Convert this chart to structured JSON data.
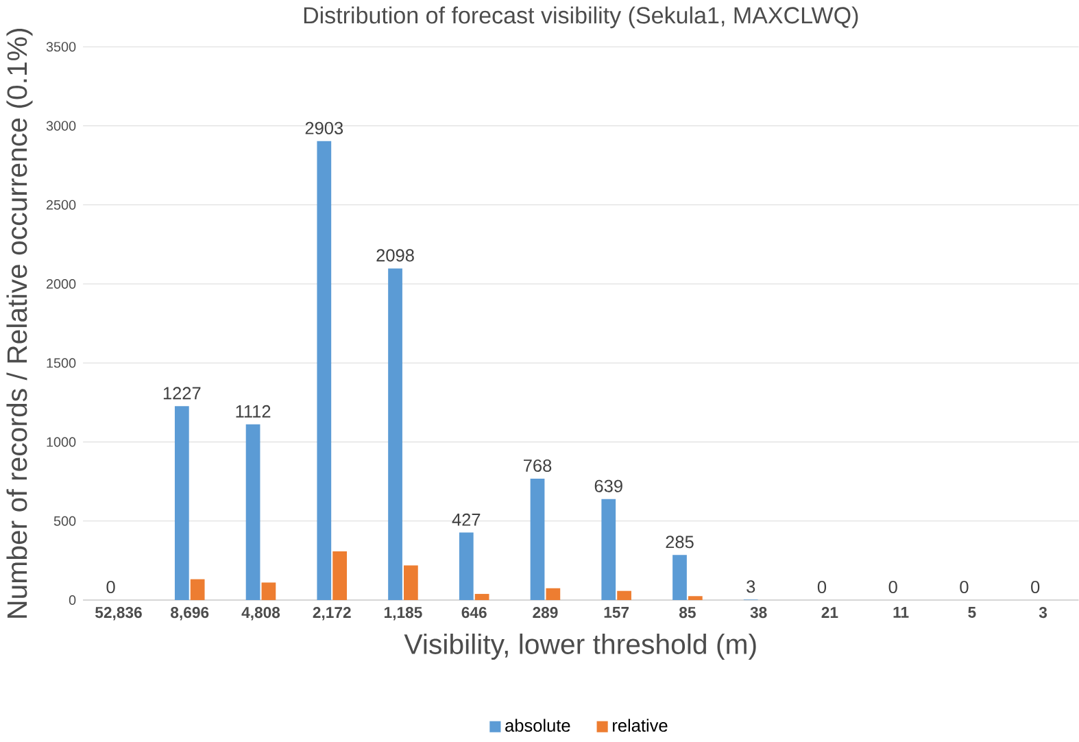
{
  "chart_data": {
    "type": "bar",
    "title": "Distribution of forecast visibility (Sekula1, MAXCLWQ)",
    "xlabel": "Visibility, lower threshold (m)",
    "ylabel": "Number of records / Relative occurrence (0.1%)",
    "categories": [
      "52,836",
      "8,696",
      "4,808",
      "2,172",
      "1,185",
      "646",
      "289",
      "157",
      "85",
      "38",
      "21",
      "11",
      "5",
      "3"
    ],
    "series": [
      {
        "name": "absolute",
        "color": "#5b9bd5",
        "values": [
          0,
          1227,
          1112,
          2903,
          2098,
          427,
          768,
          639,
          285,
          3,
          0,
          0,
          0,
          0
        ],
        "value_labels": [
          "0",
          "1227",
          "1112",
          "2903",
          "2098",
          "427",
          "768",
          "639",
          "285",
          "3",
          "0",
          "0",
          "0",
          "0"
        ]
      },
      {
        "name": "relative",
        "color": "#ed7d31",
        "values": [
          0,
          132,
          111,
          308,
          219,
          39,
          75,
          58,
          25,
          0,
          0,
          0,
          0,
          0
        ]
      }
    ],
    "ylim": [
      0,
      3500
    ],
    "yticks": [
      0,
      500,
      1000,
      1500,
      2000,
      2500,
      3000,
      3500
    ],
    "grid": "y",
    "legend": "bottom"
  }
}
